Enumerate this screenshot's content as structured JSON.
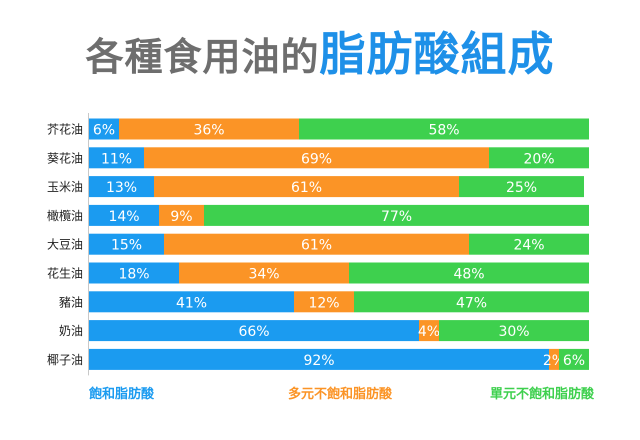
{
  "title_part1": "各種食用油的",
  "title_part2": "脂肪酸組成",
  "colors": {
    "saturated": "#1b9bf0",
    "poly": "#fb9426",
    "mono": "#3ed04e",
    "label": "#ffffff"
  },
  "chart_data": {
    "type": "bar",
    "orientation": "horizontal",
    "stacked": true,
    "categories": [
      "芥花油",
      "葵花油",
      "玉米油",
      "橄欖油",
      "大豆油",
      "花生油",
      "豬油",
      "奶油",
      "椰子油"
    ],
    "series": [
      {
        "name": "飽和脂肪酸",
        "values": [
          6,
          11,
          13,
          14,
          15,
          18,
          41,
          66,
          92
        ]
      },
      {
        "name": "多元不飽和脂肪酸",
        "values": [
          36,
          69,
          61,
          9,
          61,
          34,
          12,
          4,
          2
        ]
      },
      {
        "name": "單元不飽和脂肪酸",
        "values": [
          58,
          20,
          25,
          77,
          24,
          48,
          47,
          30,
          6
        ]
      }
    ],
    "value_labels": [
      [
        "6%",
        "36%",
        "58%"
      ],
      [
        "11%",
        "69%",
        "20%"
      ],
      [
        "13%",
        "61%",
        "25%"
      ],
      [
        "14%",
        "9%",
        "77%"
      ],
      [
        "15%",
        "61%",
        "24%"
      ],
      [
        "18%",
        "34%",
        "48%"
      ],
      [
        "41%",
        "12%",
        "47%"
      ],
      [
        "66%",
        "4%",
        "30%"
      ],
      [
        "92%",
        "2%",
        "6%"
      ]
    ],
    "xlim": [
      0,
      100
    ],
    "legend": [
      "飽和脂肪酸",
      "多元不飽和脂肪酸",
      "單元不飽和脂肪酸"
    ],
    "legend_placement": "bottom"
  }
}
